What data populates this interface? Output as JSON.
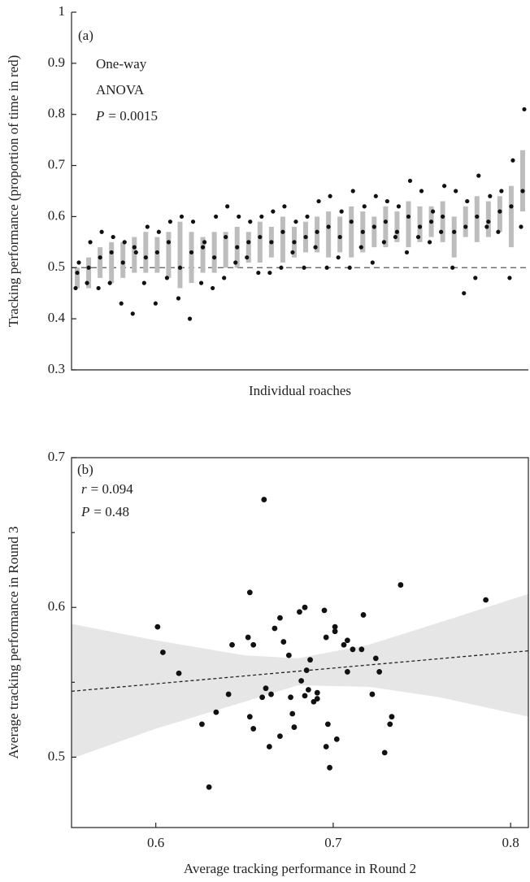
{
  "chart_data": [
    {
      "type": "range-dot",
      "annotations": [
        "(a)",
        "One-way",
        "ANOVA"
      ],
      "stat": {
        "symbol": "P",
        "text": "= 0.0015"
      },
      "y_label": "Tracking performance (proportion of time in red)",
      "x_label": "Individual roaches",
      "ylim": [
        0.3,
        1
      ],
      "yticks": [
        0.3,
        0.4,
        0.5,
        0.6,
        0.7,
        0.8,
        0.9,
        1
      ],
      "reference_line": 0.5,
      "categories": [
        null,
        null,
        null,
        null,
        null,
        null,
        null,
        null,
        null,
        null,
        null,
        null,
        null,
        null,
        null,
        null,
        null,
        null,
        null,
        null,
        null,
        null,
        null,
        null,
        null,
        null,
        null,
        null,
        null,
        null,
        null,
        null,
        null,
        null,
        null,
        null,
        null,
        null,
        null,
        null
      ],
      "range_color": "#bdbdbd",
      "point_color": "#111",
      "ranges": [
        [
          0.46,
          0.5
        ],
        [
          0.46,
          0.52
        ],
        [
          0.48,
          0.54
        ],
        [
          0.47,
          0.55
        ],
        [
          0.48,
          0.55
        ],
        [
          0.49,
          0.56
        ],
        [
          0.49,
          0.57
        ],
        [
          0.49,
          0.56
        ],
        [
          0.48,
          0.57
        ],
        [
          0.46,
          0.59
        ],
        [
          0.47,
          0.57
        ],
        [
          0.49,
          0.56
        ],
        [
          0.49,
          0.57
        ],
        [
          0.5,
          0.57
        ],
        [
          0.5,
          0.58
        ],
        [
          0.51,
          0.57
        ],
        [
          0.51,
          0.59
        ],
        [
          0.52,
          0.58
        ],
        [
          0.51,
          0.6
        ],
        [
          0.52,
          0.58
        ],
        [
          0.53,
          0.59
        ],
        [
          0.53,
          0.6
        ],
        [
          0.52,
          0.61
        ],
        [
          0.53,
          0.6
        ],
        [
          0.52,
          0.62
        ],
        [
          0.53,
          0.61
        ],
        [
          0.54,
          0.6
        ],
        [
          0.54,
          0.62
        ],
        [
          0.55,
          0.61
        ],
        [
          0.54,
          0.63
        ],
        [
          0.55,
          0.62
        ],
        [
          0.56,
          0.62
        ],
        [
          0.55,
          0.63
        ],
        [
          0.52,
          0.6
        ],
        [
          0.56,
          0.62
        ],
        [
          0.55,
          0.64
        ],
        [
          0.56,
          0.63
        ],
        [
          0.57,
          0.64
        ],
        [
          0.54,
          0.66
        ],
        [
          0.61,
          0.73
        ]
      ],
      "points": [
        [
          0.46,
          0.49,
          0.51
        ],
        [
          0.47,
          0.5,
          0.55
        ],
        [
          0.46,
          0.52,
          0.57
        ],
        [
          0.47,
          0.53,
          0.56
        ],
        [
          0.43,
          0.51,
          0.55
        ],
        [
          0.41,
          0.54,
          0.53
        ],
        [
          0.47,
          0.52,
          0.58
        ],
        [
          0.43,
          0.53,
          0.57
        ],
        [
          0.48,
          0.55,
          0.59
        ],
        [
          0.44,
          0.5,
          0.6
        ],
        [
          0.4,
          0.53,
          0.59
        ],
        [
          0.47,
          0.54,
          0.55
        ],
        [
          0.46,
          0.52,
          0.6
        ],
        [
          0.48,
          0.56,
          0.62
        ],
        [
          0.51,
          0.54,
          0.6
        ],
        [
          0.52,
          0.55,
          0.59
        ],
        [
          0.49,
          0.56,
          0.6
        ],
        [
          0.49,
          0.55,
          0.61
        ],
        [
          0.5,
          0.57,
          0.62
        ],
        [
          0.53,
          0.55,
          0.59
        ],
        [
          0.5,
          0.56,
          0.6
        ],
        [
          0.54,
          0.57,
          0.63
        ],
        [
          0.5,
          0.58,
          0.64
        ],
        [
          0.52,
          0.56,
          0.61
        ],
        [
          0.5,
          0.59,
          0.65
        ],
        [
          0.54,
          0.57,
          0.62
        ],
        [
          0.51,
          0.58,
          0.64
        ],
        [
          0.55,
          0.59,
          0.63
        ],
        [
          0.56,
          0.57,
          0.62
        ],
        [
          0.53,
          0.6,
          0.67
        ],
        [
          0.56,
          0.58,
          0.65
        ],
        [
          0.55,
          0.59,
          0.61
        ],
        [
          0.57,
          0.6,
          0.66
        ],
        [
          0.5,
          0.57,
          0.65
        ],
        [
          0.45,
          0.58,
          0.63
        ],
        [
          0.48,
          0.6,
          0.68
        ],
        [
          0.58,
          0.59,
          0.64
        ],
        [
          0.57,
          0.61,
          0.65
        ],
        [
          0.48,
          0.62,
          0.71
        ],
        [
          0.58,
          0.65,
          0.81
        ]
      ]
    },
    {
      "type": "scatter",
      "annotations": [
        "(b)"
      ],
      "stats": [
        {
          "symbol": "r",
          "text": "= 0.094"
        },
        {
          "symbol": "P",
          "text": "= 0.48"
        }
      ],
      "y_label": "Average tracking performance in Round 3",
      "x_label": "Average tracking performance in Round 2",
      "xlim": [
        0.5525,
        0.81
      ],
      "xticks": [
        0.6,
        0.7,
        0.8
      ],
      "ylim": [
        0.453,
        0.7
      ],
      "yticks": [
        0.5,
        0.6,
        0.7
      ],
      "yminorticks": [
        0.55,
        0.65
      ],
      "point_color": "#111",
      "band_color": "#e6e6e6",
      "fit": {
        "x": [
          0.5525,
          0.81
        ],
        "y": [
          0.544,
          0.571
        ]
      },
      "band": {
        "x": [
          0.5525,
          0.6,
          0.65,
          0.68,
          0.72,
          0.76,
          0.81
        ],
        "upper": [
          0.589,
          0.578,
          0.568,
          0.566,
          0.575,
          0.59,
          0.609
        ],
        "lower": [
          0.499,
          0.519,
          0.537,
          0.548,
          0.547,
          0.54,
          0.527
        ]
      },
      "x": [
        0.601,
        0.604,
        0.613,
        0.626,
        0.63,
        0.634,
        0.641,
        0.643,
        0.652,
        0.653,
        0.655,
        0.653,
        0.655,
        0.661,
        0.66,
        0.662,
        0.665,
        0.664,
        0.667,
        0.67,
        0.67,
        0.672,
        0.675,
        0.676,
        0.677,
        0.678,
        0.681,
        0.682,
        0.684,
        0.684,
        0.685,
        0.686,
        0.687,
        0.689,
        0.691,
        0.691,
        0.695,
        0.696,
        0.696,
        0.697,
        0.698,
        0.701,
        0.701,
        0.702,
        0.706,
        0.708,
        0.708,
        0.711,
        0.716,
        0.717,
        0.722,
        0.724,
        0.726,
        0.729,
        0.732,
        0.733,
        0.738,
        0.786
      ],
      "y": [
        0.587,
        0.57,
        0.556,
        0.522,
        0.48,
        0.53,
        0.542,
        0.575,
        0.58,
        0.61,
        0.575,
        0.527,
        0.519,
        0.672,
        0.54,
        0.546,
        0.542,
        0.507,
        0.586,
        0.593,
        0.514,
        0.577,
        0.568,
        0.54,
        0.529,
        0.52,
        0.597,
        0.551,
        0.6,
        0.541,
        0.558,
        0.545,
        0.565,
        0.537,
        0.543,
        0.539,
        0.598,
        0.58,
        0.507,
        0.522,
        0.493,
        0.587,
        0.584,
        0.512,
        0.575,
        0.578,
        0.557,
        0.572,
        0.572,
        0.595,
        0.542,
        0.566,
        0.557,
        0.503,
        0.522,
        0.527,
        0.615,
        0.605
      ]
    }
  ]
}
